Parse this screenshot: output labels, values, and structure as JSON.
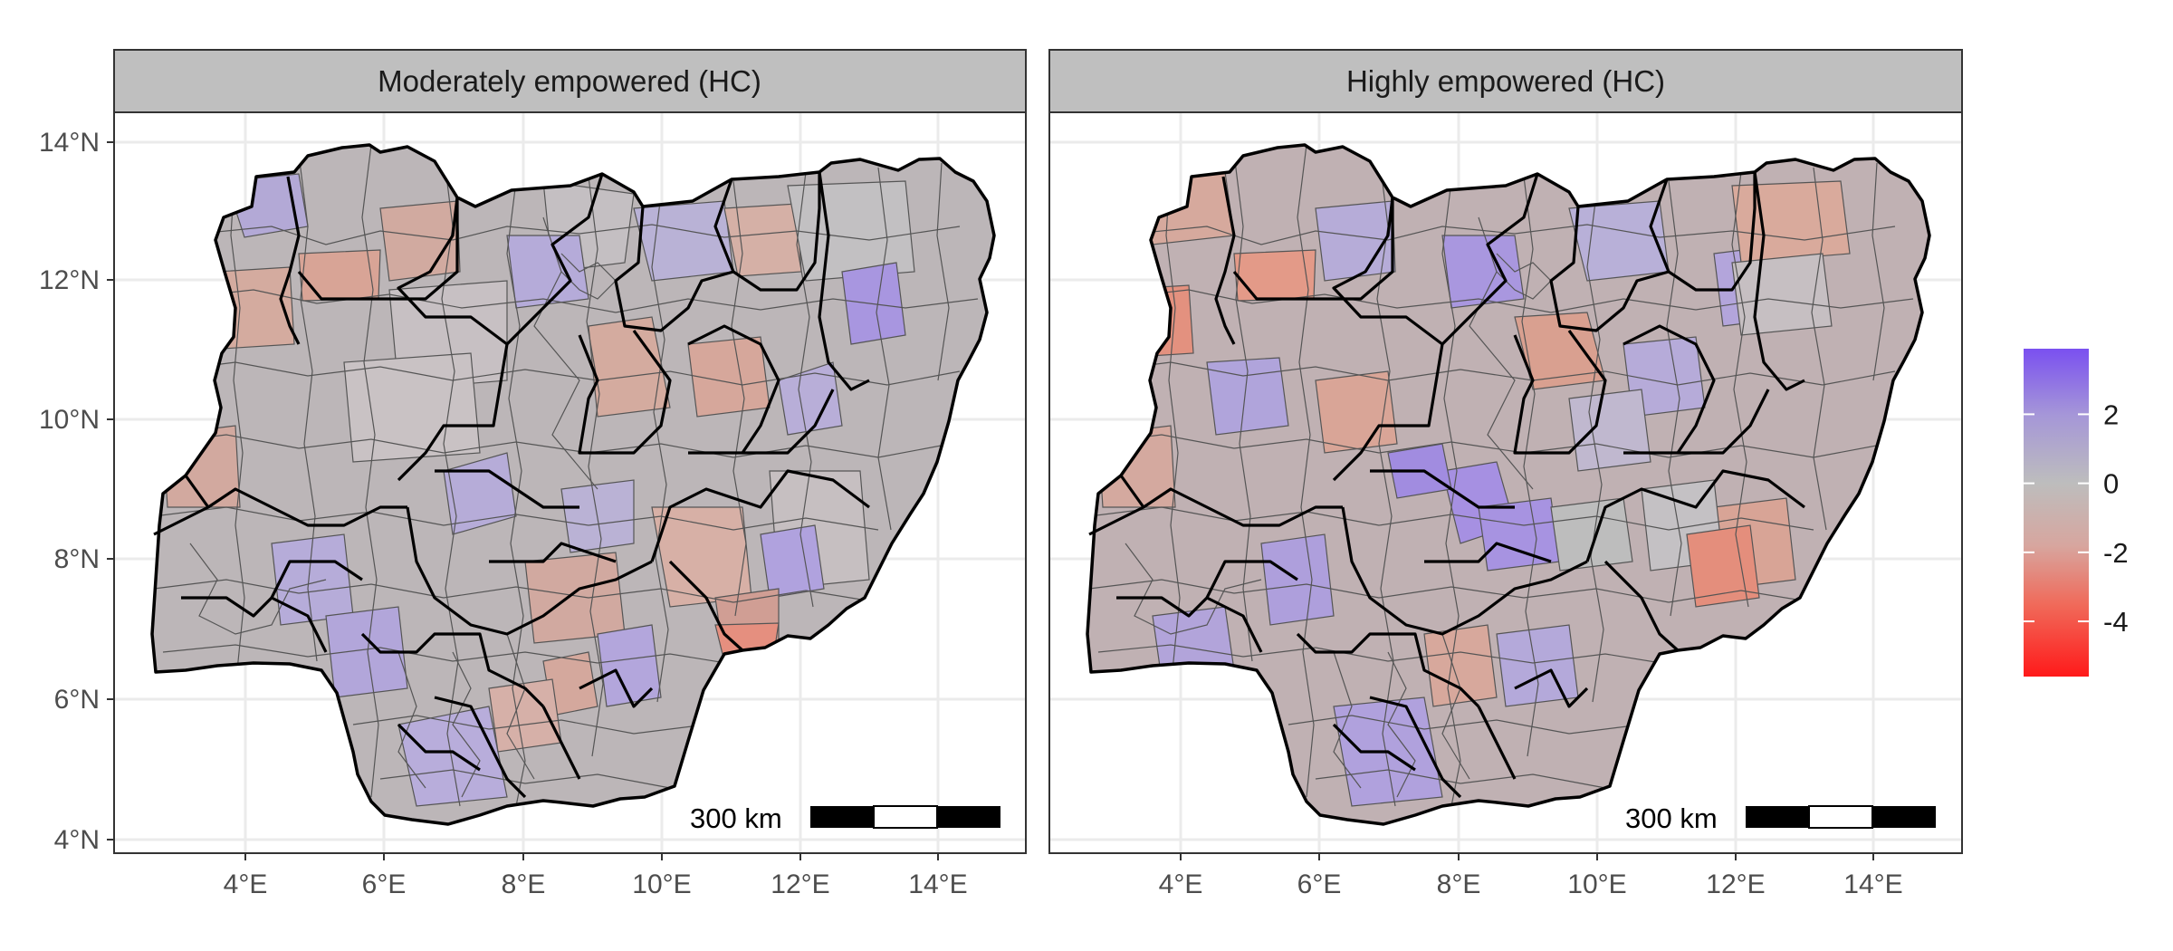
{
  "panels": [
    {
      "id": "moderate",
      "title": "Moderately empowered (HC)",
      "scale_bar_label": "300 km"
    },
    {
      "id": "high",
      "title": "Highly empowered (HC)",
      "scale_bar_label": "300 km"
    }
  ],
  "axes": {
    "y_ticks": [
      "4°N",
      "6°N",
      "8°N",
      "10°N",
      "12°N",
      "14°N"
    ],
    "x_ticks": [
      "4°E",
      "6°E",
      "8°E",
      "10°E",
      "12°E",
      "14°E"
    ]
  },
  "legend": {
    "labels": [
      "2",
      "0",
      "-2",
      "-4"
    ],
    "values": [
      2,
      0,
      -2,
      -4
    ],
    "min": -5.6,
    "max": 3.9,
    "colors": {
      "low": "#ff1a1a",
      "mid": "#bdbdbd",
      "high": "#7a50f0"
    }
  }
}
